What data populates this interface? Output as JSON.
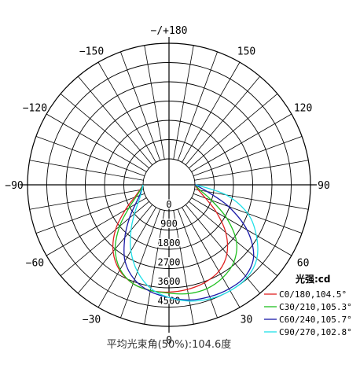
{
  "chart_data": {
    "type": "polar",
    "title": "",
    "unit_label": "光强:cd",
    "radial_ticks": [
      0,
      900,
      1800,
      2700,
      3600,
      4500
    ],
    "rmax": 5400,
    "angle_labels": [
      {
        "deg": 0,
        "text": "0"
      },
      {
        "deg": 30,
        "text": "30"
      },
      {
        "deg": -30,
        "text": "−30"
      },
      {
        "deg": 60,
        "text": "60"
      },
      {
        "deg": -60,
        "text": "−60"
      },
      {
        "deg": 90,
        "text": "90"
      },
      {
        "deg": -90,
        "text": "−90"
      },
      {
        "deg": 120,
        "text": "120"
      },
      {
        "deg": -120,
        "text": "−120"
      },
      {
        "deg": 150,
        "text": "150"
      },
      {
        "deg": -150,
        "text": "−150"
      },
      {
        "deg": 180,
        "text": "−/+180"
      }
    ],
    "series": [
      {
        "name": "C0/180,104.5°",
        "color": "#e02020",
        "points": [
          [
            -90,
            0
          ],
          [
            -80,
            170
          ],
          [
            -70,
            500
          ],
          [
            -60,
            1150
          ],
          [
            -50,
            2050
          ],
          [
            -40,
            2850
          ],
          [
            -30,
            3400
          ],
          [
            -20,
            3700
          ],
          [
            -10,
            3800
          ],
          [
            0,
            3800
          ],
          [
            10,
            3750
          ],
          [
            20,
            3650
          ],
          [
            30,
            3450
          ],
          [
            40,
            3000
          ],
          [
            50,
            2250
          ],
          [
            60,
            1350
          ],
          [
            70,
            600
          ],
          [
            80,
            180
          ],
          [
            90,
            0
          ]
        ]
      },
      {
        "name": "C30/210,105.3°",
        "color": "#20c020",
        "points": [
          [
            -90,
            0
          ],
          [
            -80,
            140
          ],
          [
            -70,
            420
          ],
          [
            -60,
            950
          ],
          [
            -50,
            1800
          ],
          [
            -40,
            2700
          ],
          [
            -30,
            3350
          ],
          [
            -20,
            3700
          ],
          [
            -10,
            3800
          ],
          [
            0,
            3850
          ],
          [
            10,
            3950
          ],
          [
            20,
            3950
          ],
          [
            30,
            3800
          ],
          [
            40,
            3500
          ],
          [
            50,
            2900
          ],
          [
            60,
            1900
          ],
          [
            70,
            900
          ],
          [
            80,
            280
          ],
          [
            90,
            0
          ]
        ]
      },
      {
        "name": "C60/240,105.7°",
        "color": "#1a1aa8",
        "points": [
          [
            -90,
            0
          ],
          [
            -80,
            90
          ],
          [
            -70,
            250
          ],
          [
            -60,
            600
          ],
          [
            -50,
            1200
          ],
          [
            -40,
            2000
          ],
          [
            -30,
            2900
          ],
          [
            -20,
            3500
          ],
          [
            -10,
            3850
          ],
          [
            0,
            4050
          ],
          [
            10,
            4250
          ],
          [
            20,
            4350
          ],
          [
            30,
            4400
          ],
          [
            40,
            4350
          ],
          [
            50,
            3950
          ],
          [
            60,
            3000
          ],
          [
            70,
            1750
          ],
          [
            80,
            600
          ],
          [
            90,
            0
          ]
        ]
      },
      {
        "name": "C90/270,102.8°",
        "color": "#20e0e8",
        "points": [
          [
            -90,
            0
          ],
          [
            -80,
            70
          ],
          [
            -70,
            200
          ],
          [
            -60,
            450
          ],
          [
            -50,
            900
          ],
          [
            -40,
            1550
          ],
          [
            -30,
            2350
          ],
          [
            -20,
            3100
          ],
          [
            -10,
            3700
          ],
          [
            0,
            4050
          ],
          [
            10,
            4300
          ],
          [
            20,
            4450
          ],
          [
            30,
            4500
          ],
          [
            40,
            4450
          ],
          [
            50,
            4150
          ],
          [
            60,
            3500
          ],
          [
            70,
            2700
          ],
          [
            80,
            1500
          ],
          [
            90,
            50
          ]
        ]
      }
    ],
    "caption": "平均光束角(50%):104.6度"
  }
}
